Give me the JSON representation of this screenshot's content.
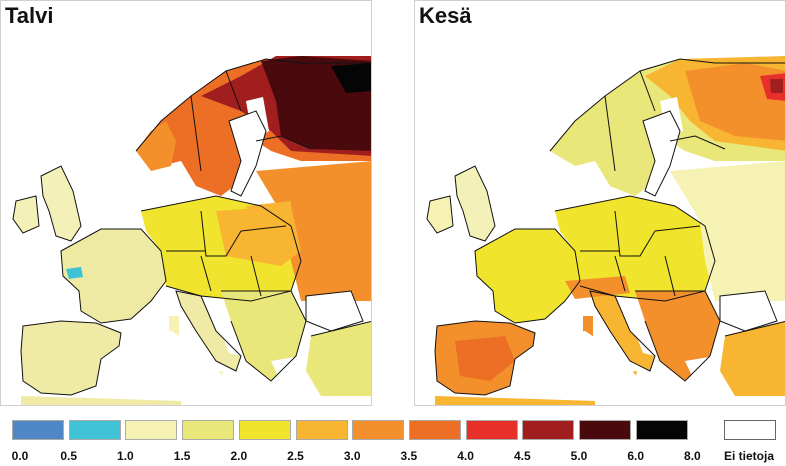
{
  "panels": [
    {
      "id": "winter",
      "title": "Talvi"
    },
    {
      "id": "summer",
      "title": "Kesä"
    }
  ],
  "legend": {
    "classes": [
      {
        "from": "0.0",
        "to": "0.5",
        "color": "#4f86c6"
      },
      {
        "from": "0.5",
        "to": "1.0",
        "color": "#3fc1d6"
      },
      {
        "from": "1.0",
        "to": "1.5",
        "color": "#f6f2b4"
      },
      {
        "from": "1.5",
        "to": "2.0",
        "color": "#e9e67a"
      },
      {
        "from": "2.0",
        "to": "2.5",
        "color": "#f0e52c"
      },
      {
        "from": "2.5",
        "to": "3.0",
        "color": "#f7b531"
      },
      {
        "from": "3.0",
        "to": "3.5",
        "color": "#f3902c"
      },
      {
        "from": "3.5",
        "to": "4.0",
        "color": "#ec6f25"
      },
      {
        "from": "4.0",
        "to": "4.5",
        "color": "#e8302a"
      },
      {
        "from": "4.5",
        "to": "5.0",
        "color": "#a01e1e"
      },
      {
        "from": "5.0",
        "to": "6.0",
        "color": "#4a0a0d"
      },
      {
        "from": "6.0",
        "to": "8.0",
        "color": "#050505"
      }
    ],
    "ticks": [
      "0.0",
      "0.5",
      "1.0",
      "1.5",
      "2.0",
      "2.5",
      "3.0",
      "3.5",
      "4.0",
      "4.5",
      "5.0",
      "6.0",
      "8.0"
    ],
    "nodata_label": "Ei tietoja",
    "nodata_color": "#ffffff"
  }
}
